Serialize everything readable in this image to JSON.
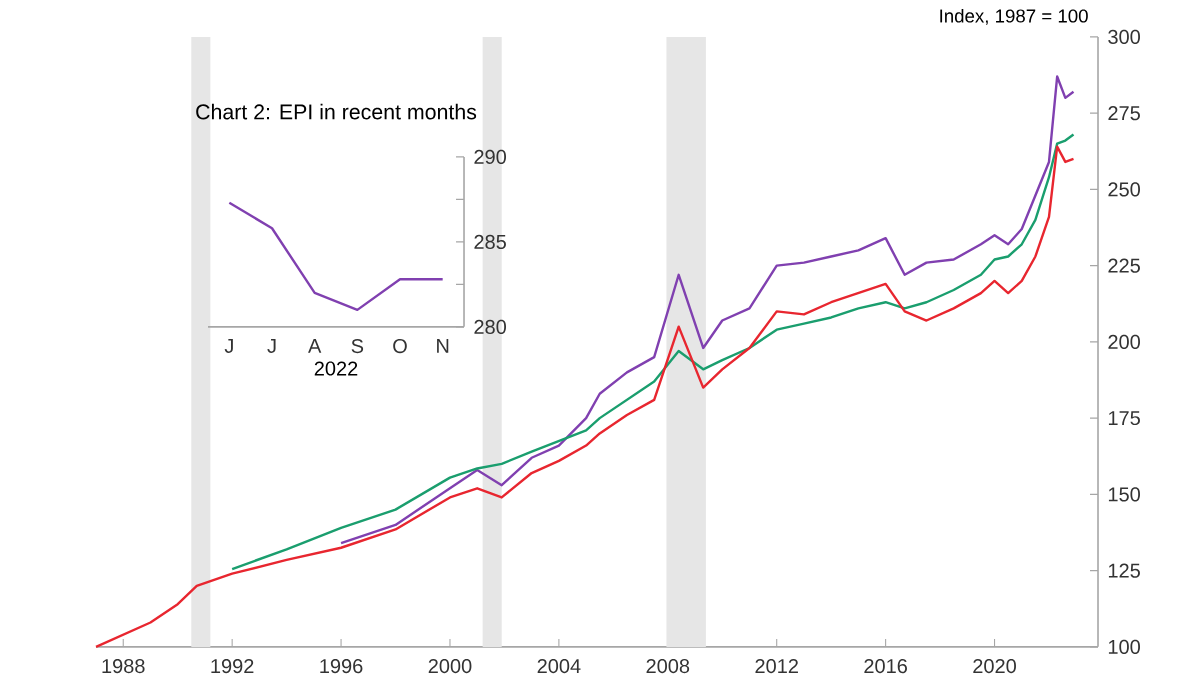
{
  "chart_data": [
    {
      "type": "line",
      "ylabel": "Index, 1987 = 100",
      "xlim": [
        1987,
        2023.8
      ],
      "xticks": [
        1988,
        1992,
        1996,
        2000,
        2004,
        2008,
        2012,
        2016,
        2020
      ],
      "ylim": [
        100,
        300
      ],
      "yticks": [
        100,
        125,
        150,
        175,
        200,
        225,
        250,
        275,
        300
      ],
      "bands": [
        {
          "axis": "x",
          "from": 1990.5,
          "to": 1991.2,
          "color": "#e6e6e6"
        },
        {
          "axis": "x",
          "from": 2001.2,
          "to": 2001.9,
          "color": "#e6e6e6"
        },
        {
          "axis": "x",
          "from": 2007.95,
          "to": 2009.4,
          "color": "#e6e6e6"
        }
      ],
      "x": [
        1987.0,
        1988.0,
        1989.0,
        1990.0,
        1990.7,
        1992.0,
        1994.0,
        1996.0,
        1998.0,
        2000.0,
        2001.0,
        2001.9,
        2003.0,
        2004.0,
        2005.0,
        2005.5,
        2006.5,
        2007.5,
        2008.4,
        2009.3,
        2010.0,
        2011.0,
        2012.0,
        2013.0,
        2014.0,
        2015.0,
        2016.0,
        2016.7,
        2017.5,
        2018.5,
        2019.5,
        2020.0,
        2020.5,
        2021.0,
        2021.5,
        2022.0,
        2022.3,
        2022.6,
        2022.9
      ],
      "series": [
        {
          "color": "#8040b0",
          "values": [
            null,
            null,
            null,
            null,
            null,
            null,
            null,
            134,
            140,
            152,
            158,
            153,
            162,
            166,
            175,
            183,
            190,
            195,
            222,
            198,
            207,
            211,
            225,
            226,
            228,
            230,
            234,
            222,
            226,
            227,
            232,
            235,
            232,
            237,
            248,
            259,
            287,
            280,
            282
          ]
        },
        {
          "color": "#1a9e6e",
          "values": [
            null,
            null,
            null,
            null,
            null,
            125.5,
            132,
            139,
            145,
            155.5,
            158.5,
            160,
            164,
            167.5,
            171,
            175,
            181,
            187,
            197,
            191,
            194,
            198,
            204,
            206,
            208,
            211,
            213,
            211,
            213,
            217,
            222,
            227,
            228,
            232,
            240,
            254,
            265,
            266,
            268
          ]
        },
        {
          "color": "#e8262f",
          "values": [
            100,
            104,
            108,
            114,
            120,
            124,
            128.5,
            132.5,
            138.5,
            149,
            152,
            149,
            157,
            161,
            166,
            170,
            176,
            181,
            205,
            185,
            191,
            198,
            210,
            209,
            213,
            216,
            219,
            210,
            207,
            211,
            216,
            220,
            216,
            220,
            228,
            241,
            264,
            259,
            260
          ]
        }
      ]
    },
    {
      "type": "line",
      "title": "Chart 2: EPI in recent months",
      "xlabel": "2022",
      "categories": [
        "J",
        "J",
        "A",
        "S",
        "O",
        "N"
      ],
      "ylim": [
        280,
        290
      ],
      "yticks": [
        280,
        {
          "value": 282.5,
          "label": null
        },
        285,
        {
          "value": 287.5,
          "label": null
        },
        290
      ],
      "series": [
        {
          "color": "#8040b0",
          "values": [
            287.3,
            285.8,
            282,
            281,
            282.8,
            282.8
          ]
        }
      ]
    }
  ]
}
